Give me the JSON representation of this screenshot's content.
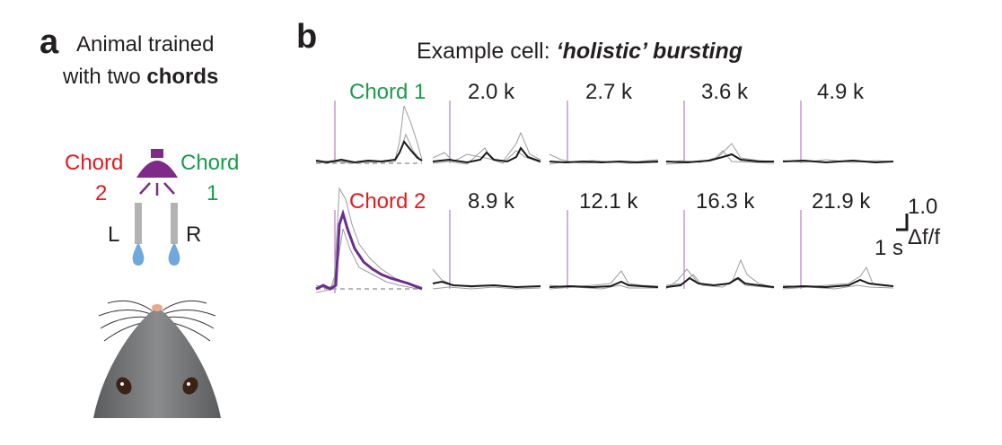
{
  "panel_a": {
    "letter": "a",
    "title_line1": "Animal trained",
    "title_line2_prefix": "with two ",
    "title_line2_bold": "chords",
    "speaker_left_label_line1": "Chord",
    "speaker_left_label_line2": "2",
    "speaker_right_label_line1": "Chord",
    "speaker_right_label_line2": "1",
    "lick_left": "L",
    "lick_right": "R",
    "colors": {
      "chord1": "#1a9c4b",
      "chord2": "#e41a1c",
      "speaker": "#7d2a88",
      "spout": "#b3b3b3",
      "drop": "#6ea8dc",
      "mouse": "#6d6e71"
    }
  },
  "panel_b": {
    "letter": "b",
    "title_prefix": "Example cell: ",
    "title_emph": "‘holistic’ bursting",
    "row1": {
      "label": "Chord 1",
      "tones": [
        "2.0 k",
        "2.7 k",
        "3.6 k",
        "4.9 k"
      ]
    },
    "row2": {
      "label": "Chord 2",
      "tones": [
        "8.9 k",
        "12.1 k",
        "16.3 k",
        "21.9 k"
      ]
    },
    "scalebar": {
      "y_value": "1.0",
      "y_unit": "Δf/f",
      "x_value": "1 s"
    },
    "colors": {
      "chord1": "#1a9c4b",
      "chord2": "#e41a1c",
      "onset": "#b57fc4",
      "mean": "#1a1a1a",
      "trial": "#9d9d9d",
      "chord2_response": "#6b2d8e"
    }
  }
}
